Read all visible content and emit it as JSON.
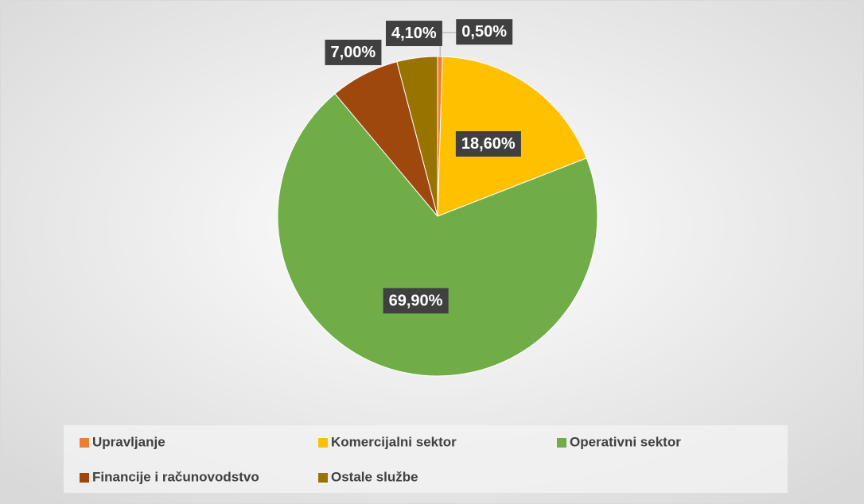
{
  "chart_data": {
    "type": "pie",
    "categories": [
      "Upravljanje",
      "Komercijalni sektor",
      "Operativni sektor",
      "Financije i računovodstvo",
      "Ostale službe"
    ],
    "values": [
      0.5,
      18.6,
      69.9,
      7.0,
      4.1
    ],
    "value_labels": [
      "0,50%",
      "18,60%",
      "69,90%",
      "7,00%",
      "4,10%"
    ],
    "colors": [
      "#ed7d31",
      "#ffc000",
      "#70ad47",
      "#9e480e",
      "#997300"
    ],
    "legend": "bottom"
  }
}
